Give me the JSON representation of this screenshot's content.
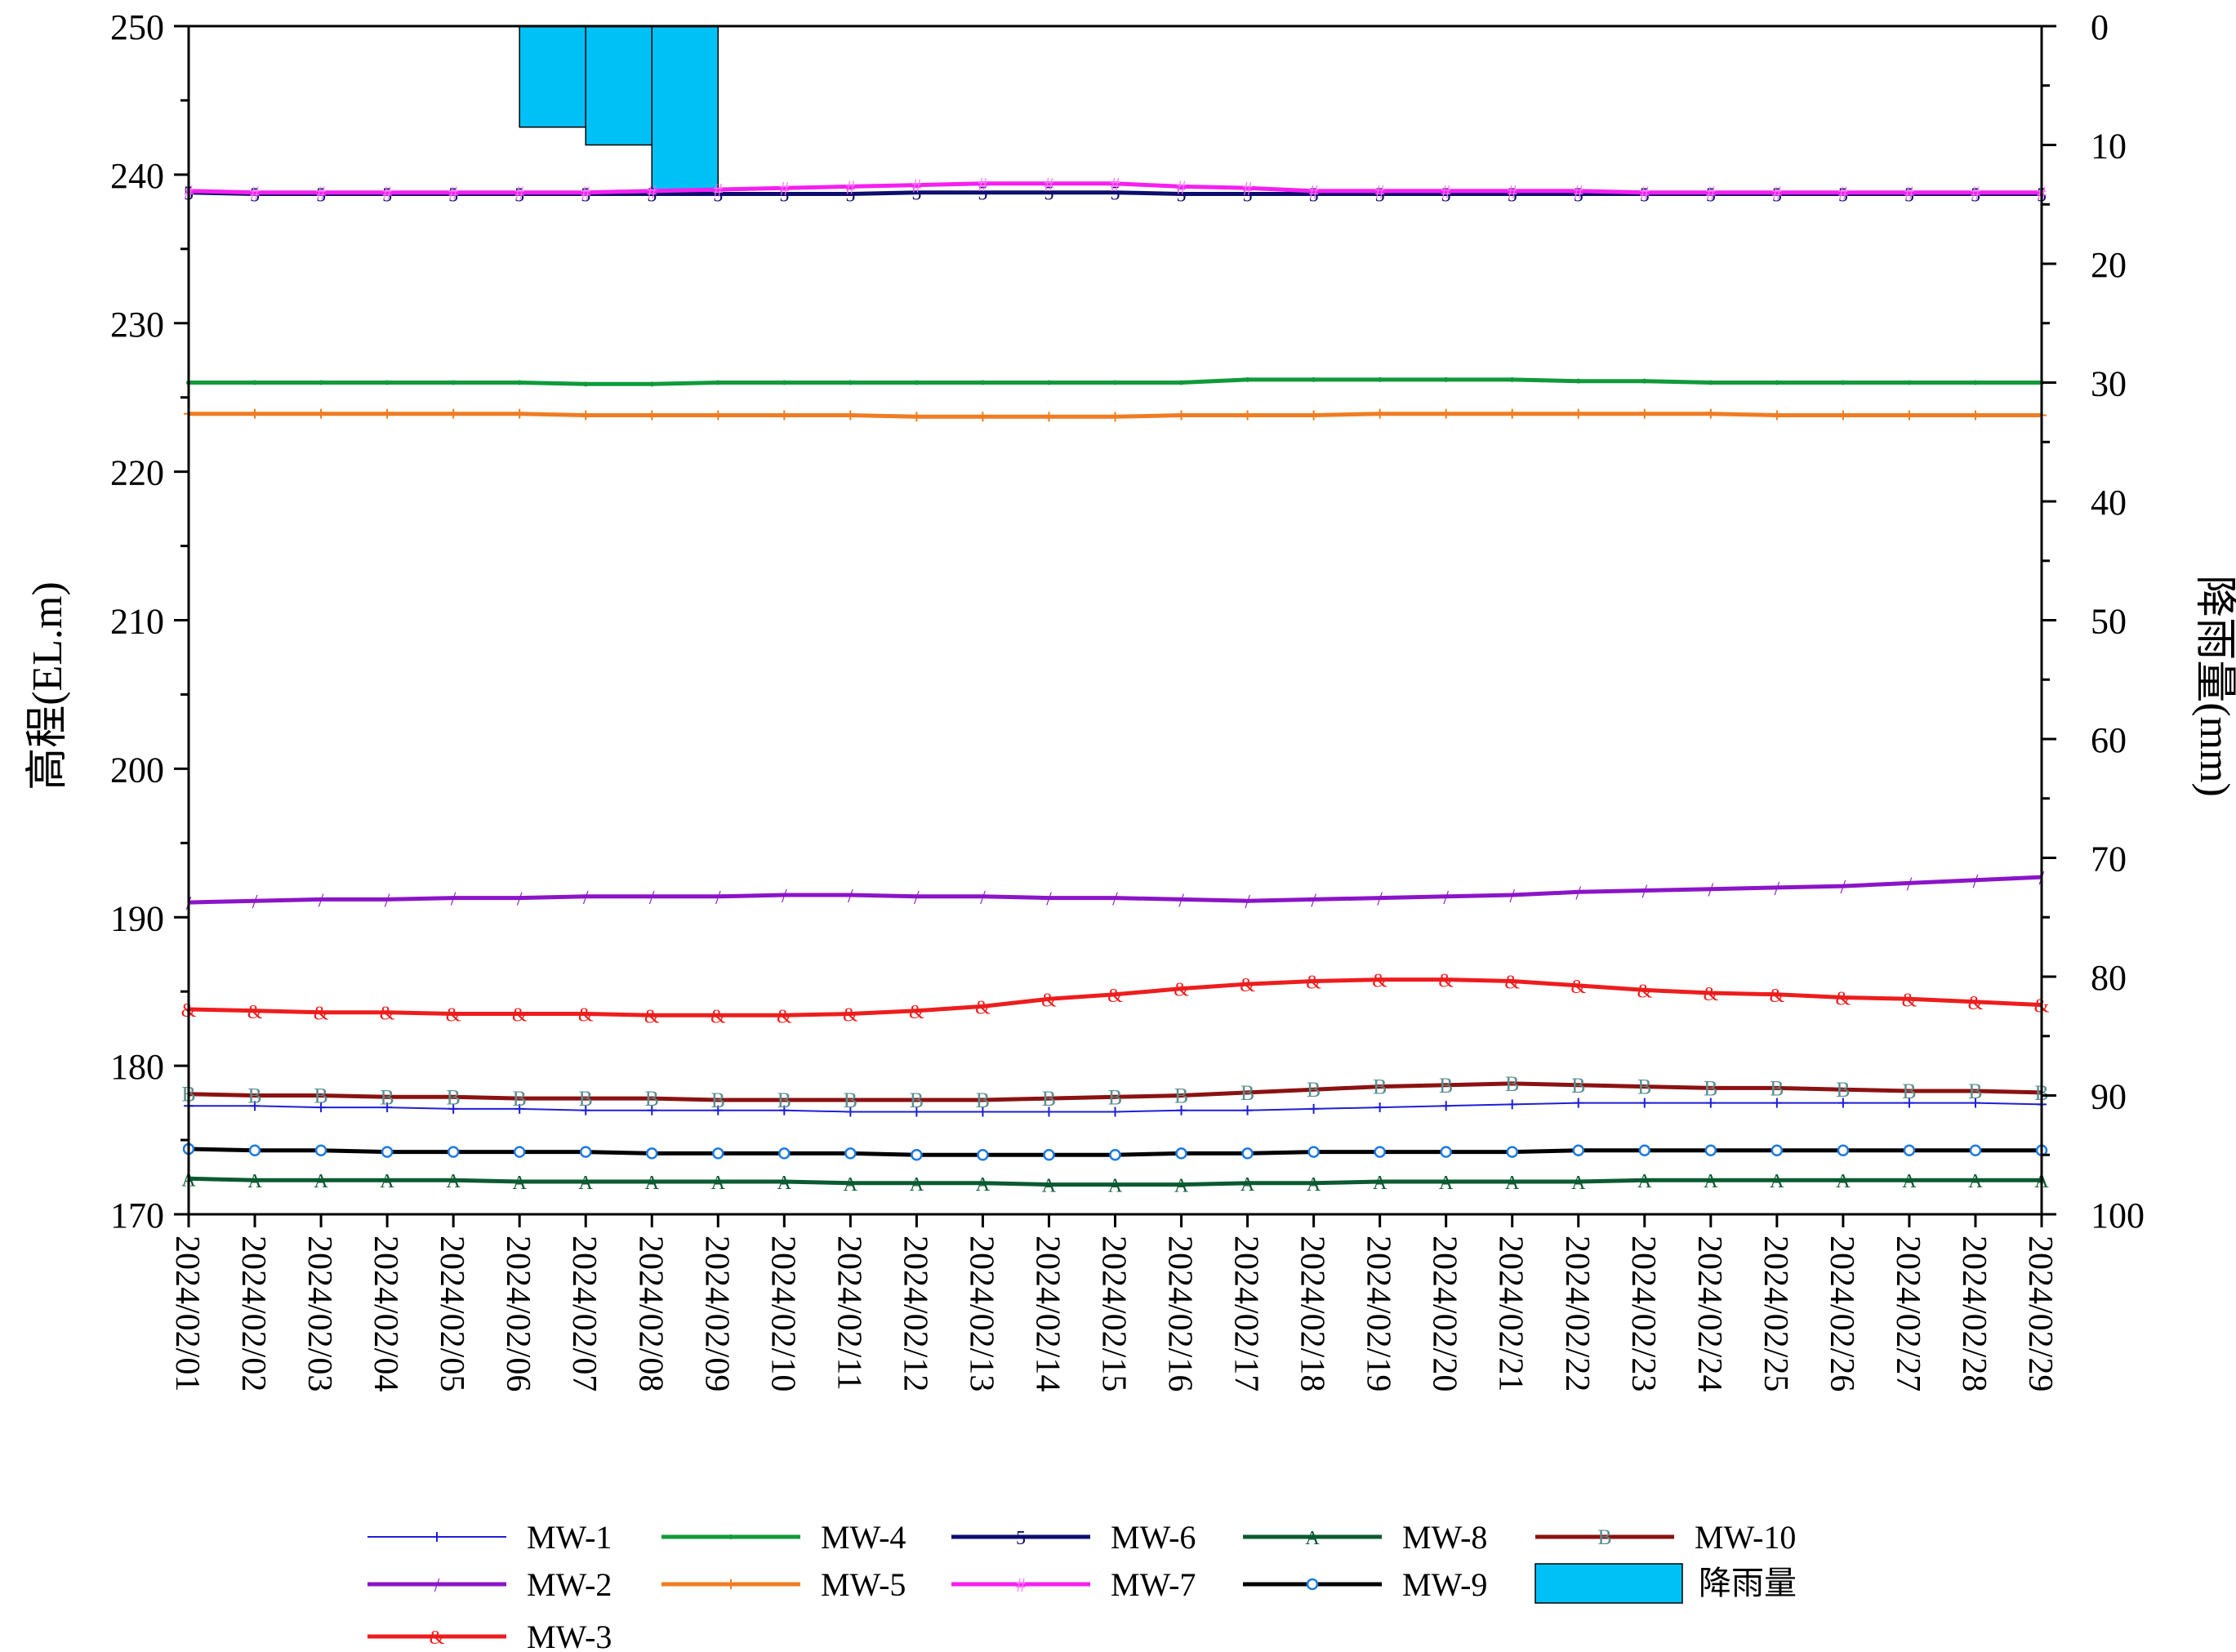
{
  "chart_data": {
    "type": "line",
    "title": "",
    "xlabel": "",
    "ylabel": "高程(EL.m)",
    "y2label": "降雨量(mm)",
    "ylim": [
      170,
      250
    ],
    "y2lim": [
      0,
      100
    ],
    "y2_inverted": true,
    "yticks": [
      170,
      180,
      190,
      200,
      210,
      220,
      230,
      240,
      250
    ],
    "y2ticks": [
      0,
      10,
      20,
      30,
      40,
      50,
      60,
      70,
      80,
      90,
      100
    ],
    "grid": false,
    "legend_position": "bottom",
    "x": [
      "2024/02/01",
      "2024/02/02",
      "2024/02/03",
      "2024/02/04",
      "2024/02/05",
      "2024/02/06",
      "2024/02/07",
      "2024/02/08",
      "2024/02/09",
      "2024/02/10",
      "2024/02/11",
      "2024/02/12",
      "2024/02/13",
      "2024/02/14",
      "2024/02/15",
      "2024/02/16",
      "2024/02/17",
      "2024/02/18",
      "2024/02/19",
      "2024/02/20",
      "2024/02/21",
      "2024/02/22",
      "2024/02/23",
      "2024/02/24",
      "2024/02/25",
      "2024/02/26",
      "2024/02/27",
      "2024/02/28",
      "2024/02/29"
    ],
    "series": [
      {
        "name": "MW-1",
        "color": "#1f1fd6",
        "marker": "+",
        "width": 2,
        "values": [
          177.3,
          177.3,
          177.2,
          177.2,
          177.1,
          177.1,
          177.0,
          177.0,
          177.0,
          177.0,
          176.9,
          176.9,
          176.9,
          176.9,
          176.9,
          177.0,
          177.0,
          177.1,
          177.2,
          177.3,
          177.4,
          177.5,
          177.5,
          177.5,
          177.5,
          177.5,
          177.5,
          177.5,
          177.4
        ]
      },
      {
        "name": "MW-2",
        "color": "#8b14c8",
        "marker": "/",
        "width": 5,
        "values": [
          191.0,
          191.1,
          191.2,
          191.2,
          191.3,
          191.3,
          191.4,
          191.4,
          191.4,
          191.5,
          191.5,
          191.4,
          191.4,
          191.3,
          191.3,
          191.2,
          191.1,
          191.2,
          191.3,
          191.4,
          191.5,
          191.7,
          191.8,
          191.9,
          192.0,
          192.1,
          192.3,
          192.5,
          192.7
        ]
      },
      {
        "name": "MW-3",
        "color": "#ee1d1d",
        "marker": "&",
        "width": 5,
        "values": [
          183.8,
          183.7,
          183.6,
          183.6,
          183.5,
          183.5,
          183.5,
          183.4,
          183.4,
          183.4,
          183.5,
          183.7,
          184.0,
          184.5,
          184.8,
          185.2,
          185.5,
          185.7,
          185.8,
          185.8,
          185.7,
          185.4,
          185.1,
          184.9,
          184.8,
          184.6,
          184.5,
          184.3,
          184.1
        ]
      },
      {
        "name": "MW-4",
        "color": "#109a3a",
        "marker": ".",
        "width": 5,
        "values": [
          226.0,
          226.0,
          226.0,
          226.0,
          226.0,
          226.0,
          225.9,
          225.9,
          226.0,
          226.0,
          226.0,
          226.0,
          226.0,
          226.0,
          226.0,
          226.0,
          226.2,
          226.2,
          226.2,
          226.2,
          226.2,
          226.1,
          226.1,
          226.0,
          226.0,
          226.0,
          226.0,
          226.0,
          226.0
        ]
      },
      {
        "name": "MW-5",
        "color": "#f07c22",
        "marker": "+",
        "width": 5,
        "values": [
          223.9,
          223.9,
          223.9,
          223.9,
          223.9,
          223.9,
          223.8,
          223.8,
          223.8,
          223.8,
          223.8,
          223.7,
          223.7,
          223.7,
          223.7,
          223.8,
          223.8,
          223.8,
          223.9,
          223.9,
          223.9,
          223.9,
          223.9,
          223.9,
          223.8,
          223.8,
          223.8,
          223.8,
          223.8
        ]
      },
      {
        "name": "MW-6",
        "color": "#0d0d6e",
        "marker": "5",
        "width": 5,
        "values": [
          238.8,
          238.7,
          238.7,
          238.7,
          238.7,
          238.7,
          238.7,
          238.7,
          238.7,
          238.7,
          238.7,
          238.8,
          238.8,
          238.8,
          238.8,
          238.7,
          238.7,
          238.7,
          238.7,
          238.7,
          238.7,
          238.7,
          238.7,
          238.7,
          238.7,
          238.7,
          238.7,
          238.7,
          238.7
        ]
      },
      {
        "name": "MW-7",
        "color": "#f51ff0",
        "marker": "#",
        "width": 5,
        "values": [
          238.9,
          238.8,
          238.8,
          238.8,
          238.8,
          238.8,
          238.8,
          238.9,
          239.0,
          239.1,
          239.2,
          239.3,
          239.4,
          239.4,
          239.4,
          239.2,
          239.1,
          238.9,
          238.9,
          238.9,
          238.9,
          238.9,
          238.8,
          238.8,
          238.8,
          238.8,
          238.8,
          238.8,
          238.8
        ]
      },
      {
        "name": "MW-8",
        "color": "#0b5a31",
        "marker": "A",
        "width": 5,
        "values": [
          172.4,
          172.3,
          172.3,
          172.3,
          172.3,
          172.2,
          172.2,
          172.2,
          172.2,
          172.2,
          172.1,
          172.1,
          172.1,
          172.0,
          172.0,
          172.0,
          172.1,
          172.1,
          172.2,
          172.2,
          172.2,
          172.2,
          172.3,
          172.3,
          172.3,
          172.3,
          172.3,
          172.3,
          172.3
        ]
      },
      {
        "name": "MW-9",
        "color": "#000000",
        "marker": "8",
        "width": 5,
        "values": [
          174.4,
          174.3,
          174.3,
          174.2,
          174.2,
          174.2,
          174.2,
          174.1,
          174.1,
          174.1,
          174.1,
          174.0,
          174.0,
          174.0,
          174.0,
          174.1,
          174.1,
          174.2,
          174.2,
          174.2,
          174.2,
          174.3,
          174.3,
          174.3,
          174.3,
          174.3,
          174.3,
          174.3,
          174.3
        ]
      },
      {
        "name": "MW-10",
        "color": "#8b1212",
        "marker": "B",
        "width": 5,
        "values": [
          178.1,
          178.0,
          178.0,
          177.9,
          177.9,
          177.8,
          177.8,
          177.8,
          177.7,
          177.7,
          177.7,
          177.7,
          177.7,
          177.8,
          177.9,
          178.0,
          178.2,
          178.4,
          178.6,
          178.7,
          178.8,
          178.7,
          178.6,
          178.5,
          178.5,
          178.4,
          178.3,
          178.3,
          178.2
        ]
      }
    ],
    "rainfall": {
      "name": "降雨量",
      "color": "#00c1f6",
      "bars": [
        {
          "x": "2024/02/07",
          "value": 8.5
        },
        {
          "x": "2024/02/08",
          "value": 10.0
        },
        {
          "x": "2024/02/09",
          "value": 14.0
        }
      ]
    },
    "legend_items": [
      "MW-1",
      "MW-4",
      "MW-6",
      "MW-8",
      "MW-10",
      "MW-2",
      "MW-5",
      "MW-7",
      "MW-9",
      "降雨量",
      "MW-3"
    ]
  }
}
